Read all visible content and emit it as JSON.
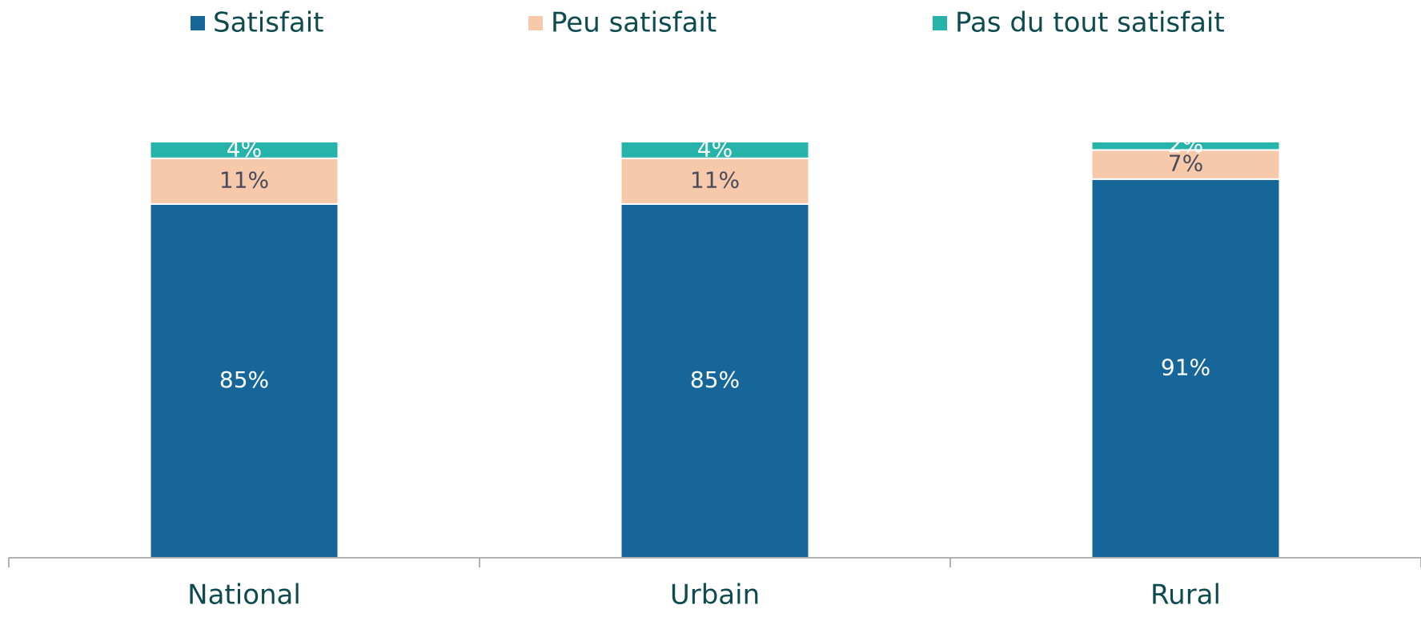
{
  "chart_data": {
    "type": "stacked_bar",
    "categories": [
      "National",
      "Urbain",
      "Rural"
    ],
    "series": [
      {
        "name": "Satisfait",
        "color": "#17669a",
        "values": [
          85,
          85,
          91
        ],
        "value_labels": [
          "85%",
          "85%",
          "91%"
        ]
      },
      {
        "name": "Peu satisfait",
        "color": "#f7c9ab",
        "values": [
          11,
          11,
          7
        ],
        "value_labels": [
          "11%",
          "11%",
          "7%"
        ]
      },
      {
        "name": "Pas du tout satisfait",
        "color": "#26b3aa",
        "values": [
          4,
          4,
          2
        ],
        "value_labels": [
          "4%",
          "4%",
          "2%"
        ]
      }
    ],
    "ylim": [
      0,
      100
    ],
    "legend": "top"
  }
}
